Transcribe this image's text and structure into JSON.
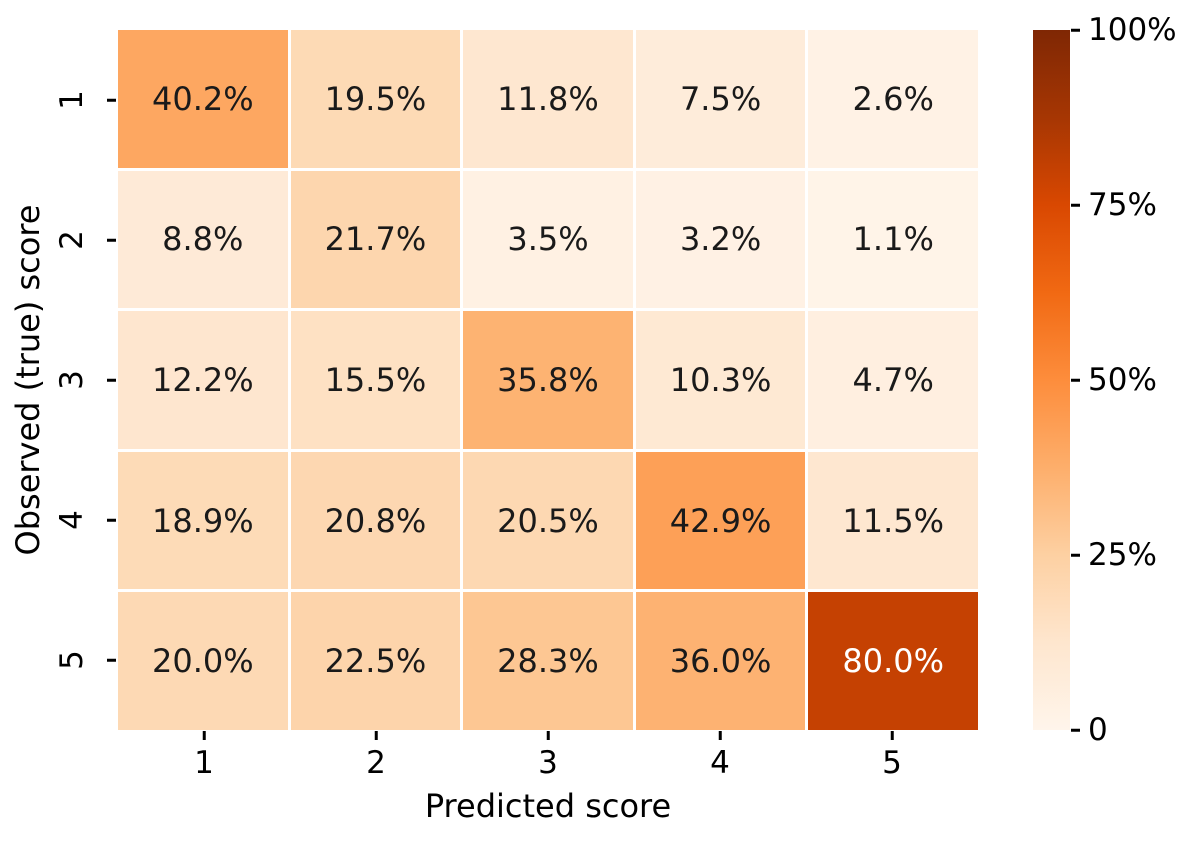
{
  "chart_data": {
    "type": "heatmap",
    "xlabel": "Predicted score",
    "ylabel": "Observed (true) score",
    "x_ticklabels": [
      "1",
      "2",
      "3",
      "4",
      "5"
    ],
    "y_ticklabels": [
      "1",
      "2",
      "3",
      "4",
      "5"
    ],
    "values": [
      [
        40.2,
        19.5,
        11.8,
        7.5,
        2.6
      ],
      [
        8.8,
        21.7,
        3.5,
        3.2,
        1.1
      ],
      [
        12.2,
        15.5,
        35.8,
        10.3,
        4.7
      ],
      [
        18.9,
        20.8,
        20.5,
        42.9,
        11.5
      ],
      [
        20.0,
        22.5,
        28.3,
        36.0,
        80.0
      ]
    ],
    "cell_labels": [
      [
        "40.2%",
        "19.5%",
        "11.8%",
        "7.5%",
        "2.6%"
      ],
      [
        "8.8%",
        "21.7%",
        "3.5%",
        "3.2%",
        "1.1%"
      ],
      [
        "12.2%",
        "15.5%",
        "35.8%",
        "10.3%",
        "4.7%"
      ],
      [
        "18.9%",
        "20.8%",
        "20.5%",
        "42.9%",
        "11.5%"
      ],
      [
        "20.0%",
        "22.5%",
        "28.3%",
        "36.0%",
        "80.0%"
      ]
    ],
    "vmin": 0,
    "vmax": 100,
    "colormap": "Oranges",
    "colormap_stops": [
      {
        "pos": 0.0,
        "color": "#fff5eb"
      },
      {
        "pos": 0.125,
        "color": "#fee6ce"
      },
      {
        "pos": 0.25,
        "color": "#fdd0a2"
      },
      {
        "pos": 0.375,
        "color": "#fdae6b"
      },
      {
        "pos": 0.5,
        "color": "#fd8d3c"
      },
      {
        "pos": 0.625,
        "color": "#f16913"
      },
      {
        "pos": 0.75,
        "color": "#d94801"
      },
      {
        "pos": 0.875,
        "color": "#a63603"
      },
      {
        "pos": 1.0,
        "color": "#7f2704"
      }
    ],
    "colorbar_ticks": [
      {
        "value": 0,
        "label": "0"
      },
      {
        "value": 25,
        "label": "25%"
      },
      {
        "value": 50,
        "label": "50%"
      },
      {
        "value": 75,
        "label": "75%"
      },
      {
        "value": 100,
        "label": "100%"
      }
    ],
    "legend_position": "right-colorbar",
    "grid": false,
    "cell_gap_color": "#ffffff",
    "annotation_text_dark": "#1a1a1a",
    "annotation_text_light": "#ffffff",
    "tick_color": "#000000"
  }
}
